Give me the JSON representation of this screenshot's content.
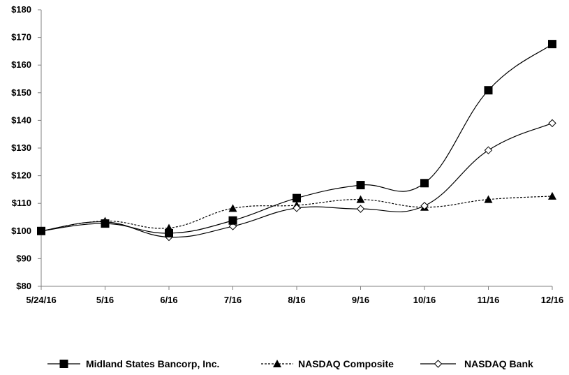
{
  "chart_data": {
    "type": "line",
    "title": "",
    "xlabel": "",
    "ylabel": "",
    "categories": [
      "5/24/16",
      "5/16",
      "6/16",
      "7/16",
      "8/16",
      "9/16",
      "10/16",
      "11/16",
      "12/16"
    ],
    "ylim": [
      80,
      180
    ],
    "y_ticks": [
      80,
      90,
      100,
      110,
      120,
      130,
      140,
      150,
      160,
      170,
      180
    ],
    "y_tick_labels": [
      "$80",
      "$90",
      "$100",
      "$110",
      "$120",
      "$130",
      "$140",
      "$150",
      "$160",
      "$170",
      "$180"
    ],
    "grid": false,
    "legend_position": "bottom",
    "series": [
      {
        "name": "Midland States Bancorp, Inc.",
        "marker": "filled-square",
        "line_style": "solid",
        "color": "#000000",
        "values": [
          100.0,
          102.7,
          99.2,
          103.8,
          111.9,
          116.6,
          117.3,
          150.9,
          167.6
        ]
      },
      {
        "name": "NASDAQ Composite",
        "marker": "filled-triangle",
        "line_style": "dashed",
        "color": "#000000",
        "values": [
          100.0,
          103.6,
          101.1,
          108.2,
          109.3,
          111.4,
          108.6,
          111.4,
          112.6
        ]
      },
      {
        "name": "NASDAQ Bank",
        "marker": "open-diamond",
        "line_style": "solid",
        "color": "#000000",
        "values": [
          100.0,
          103.3,
          97.8,
          101.7,
          108.3,
          108.0,
          109.1,
          129.2,
          139.0
        ]
      }
    ]
  }
}
